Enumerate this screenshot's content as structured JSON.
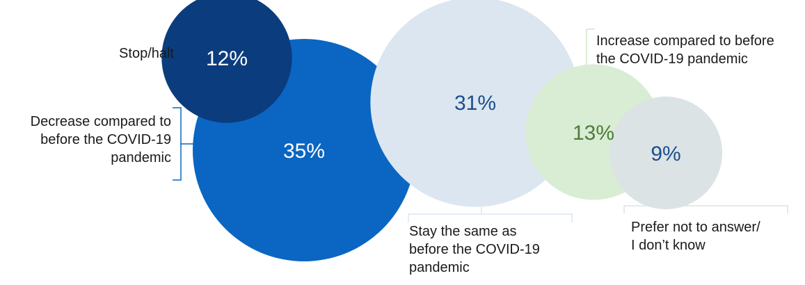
{
  "chart_data": {
    "type": "bubble",
    "title": "",
    "unit": "%",
    "series": [
      {
        "id": "stop",
        "value": 12,
        "value_label": "12%",
        "label_lines": [
          "Stop/halt"
        ],
        "fill": "#0B3C7D",
        "text_color": "#ffffff"
      },
      {
        "id": "decrease",
        "value": 35,
        "value_label": "35%",
        "label_lines": [
          "Decrease compared to",
          "before the COVID-19",
          "pandemic"
        ],
        "fill": "#0A66C2",
        "text_color": "#ffffff"
      },
      {
        "id": "same",
        "value": 31,
        "value_label": "31%",
        "label_lines": [
          "Stay the same as",
          "before the COVID-19",
          "pandemic"
        ],
        "fill": "#DCE6F0",
        "text_color": "#1C4E8C"
      },
      {
        "id": "increase",
        "value": 13,
        "value_label": "13%",
        "label_lines": [
          "Increase compared to before",
          "the COVID-19 pandemic"
        ],
        "fill": "#D8EDD3",
        "text_color": "#4E7A3C"
      },
      {
        "id": "unknown",
        "value": 9,
        "value_label": "9%",
        "label_lines": [
          "Prefer not to answer/",
          "I don’t know"
        ],
        "fill": "#DCE3E5",
        "text_color": "#1C4E8C"
      }
    ],
    "bracket_colors": {
      "stop": "#0B3C7D",
      "decrease": "#0A66C2",
      "same": "#DCE6F0",
      "increase": "#CFE8C8",
      "unknown": "#DCE3E5"
    }
  }
}
